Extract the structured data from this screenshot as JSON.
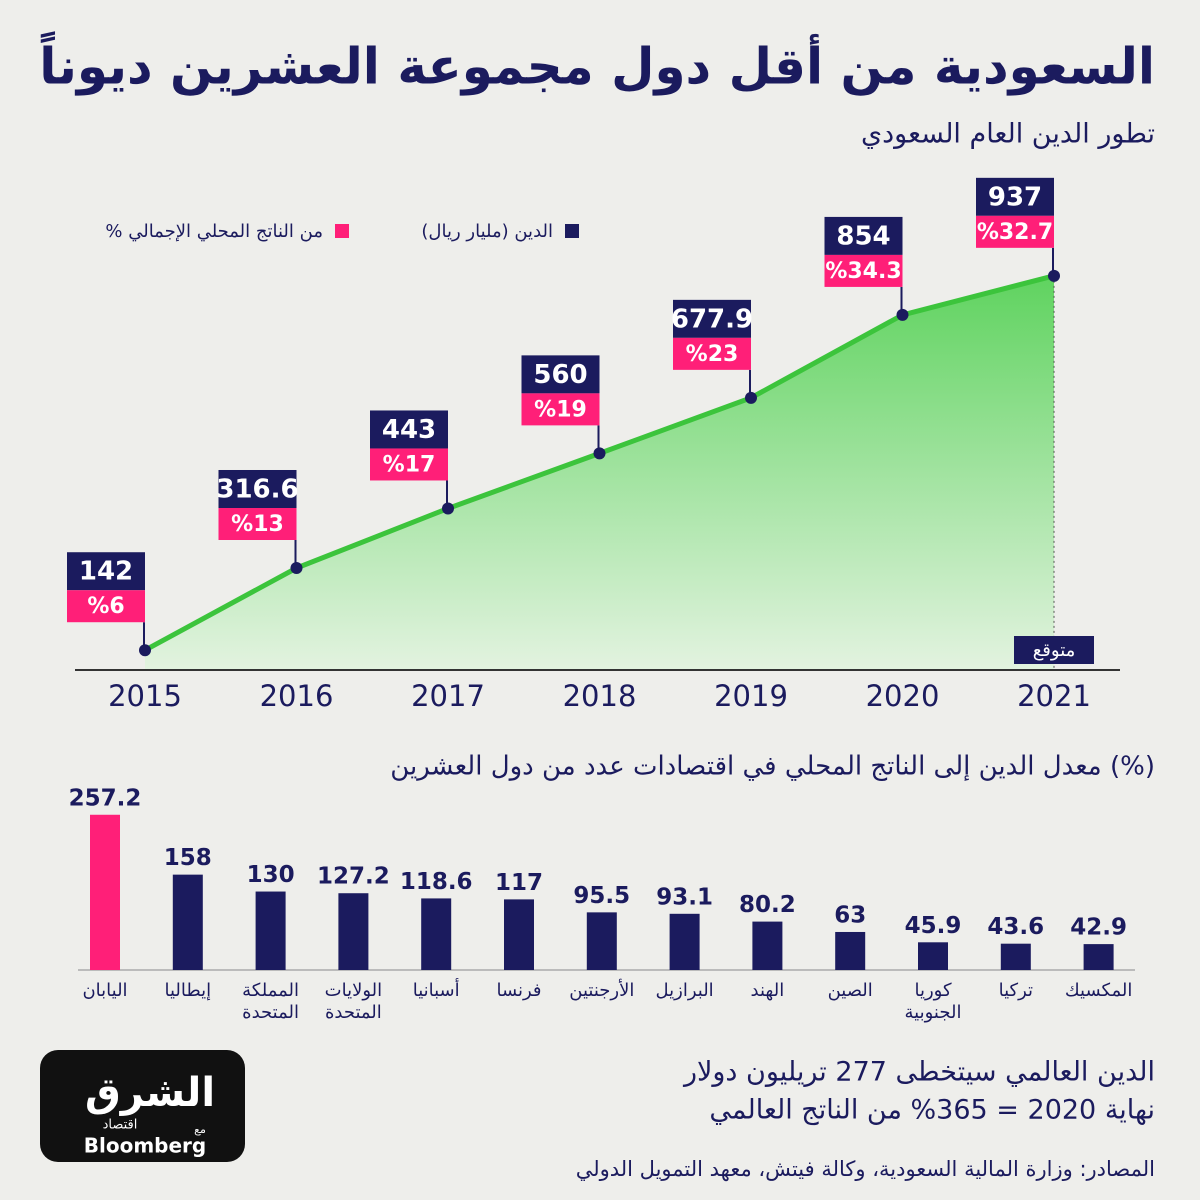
{
  "title": "السعودية من أقل دول مجموعة العشرين ديوناً",
  "note": [
    "الدين العالمي سيتخطى 277 تريليون دولار",
    "نهاية 2020 = 365% من الناتج العالمي"
  ],
  "sources": "المصادر: وزارة المالية السعودية، وكالة فيتش، معهد التمويل الدولي",
  "logo": {
    "name": "الشرق",
    "tagline": "اقتصاد",
    "with": "مع",
    "partner": "Bloomberg"
  },
  "chart_data": [
    {
      "type": "area",
      "subtitle": "تطور الدين العام السعودي",
      "categories": [
        "2015",
        "2016",
        "2017",
        "2018",
        "2019",
        "2020",
        "2021"
      ],
      "series": [
        {
          "name": "الدين (مليار ريال)",
          "color": "#1b1b5e",
          "values": [
            142,
            316.6,
            443,
            560,
            677.9,
            854,
            937
          ]
        },
        {
          "name": "% من الناتج المحلي الإجمالي",
          "color": "#ff1f78",
          "values": [
            6,
            13,
            17,
            19,
            23,
            34.3,
            32.7
          ],
          "value_labels": [
            "%6",
            "%13",
            "%17",
            "%19",
            "%23",
            "%34.3",
            "%32.7"
          ]
        }
      ],
      "annotation": "متوقع",
      "ylim": [
        100,
        960
      ]
    },
    {
      "type": "bar",
      "title": "معدل الدين إلى الناتج المحلي في اقتصادات عدد من دول العشرين (%)",
      "categories": [
        "اليابان",
        "إيطاليا",
        "المملكة المتحدة",
        "الولايات المتحدة",
        "أسبانيا",
        "فرنسا",
        "الأرجنتين",
        "البرازيل",
        "الهند",
        "الصين",
        "كوريا الجنوبية",
        "تركيا",
        "المكسيك"
      ],
      "values": [
        257.2,
        158,
        130,
        127.2,
        118.6,
        117,
        95.5,
        93.1,
        80.2,
        63,
        45.9,
        43.6,
        42.9
      ],
      "colors": [
        "#ff1f78",
        "#1b1b5e",
        "#1b1b5e",
        "#1b1b5e",
        "#1b1b5e",
        "#1b1b5e",
        "#1b1b5e",
        "#1b1b5e",
        "#1b1b5e",
        "#1b1b5e",
        "#1b1b5e",
        "#1b1b5e",
        "#1b1b5e"
      ],
      "ylim": [
        0,
        280
      ]
    }
  ]
}
